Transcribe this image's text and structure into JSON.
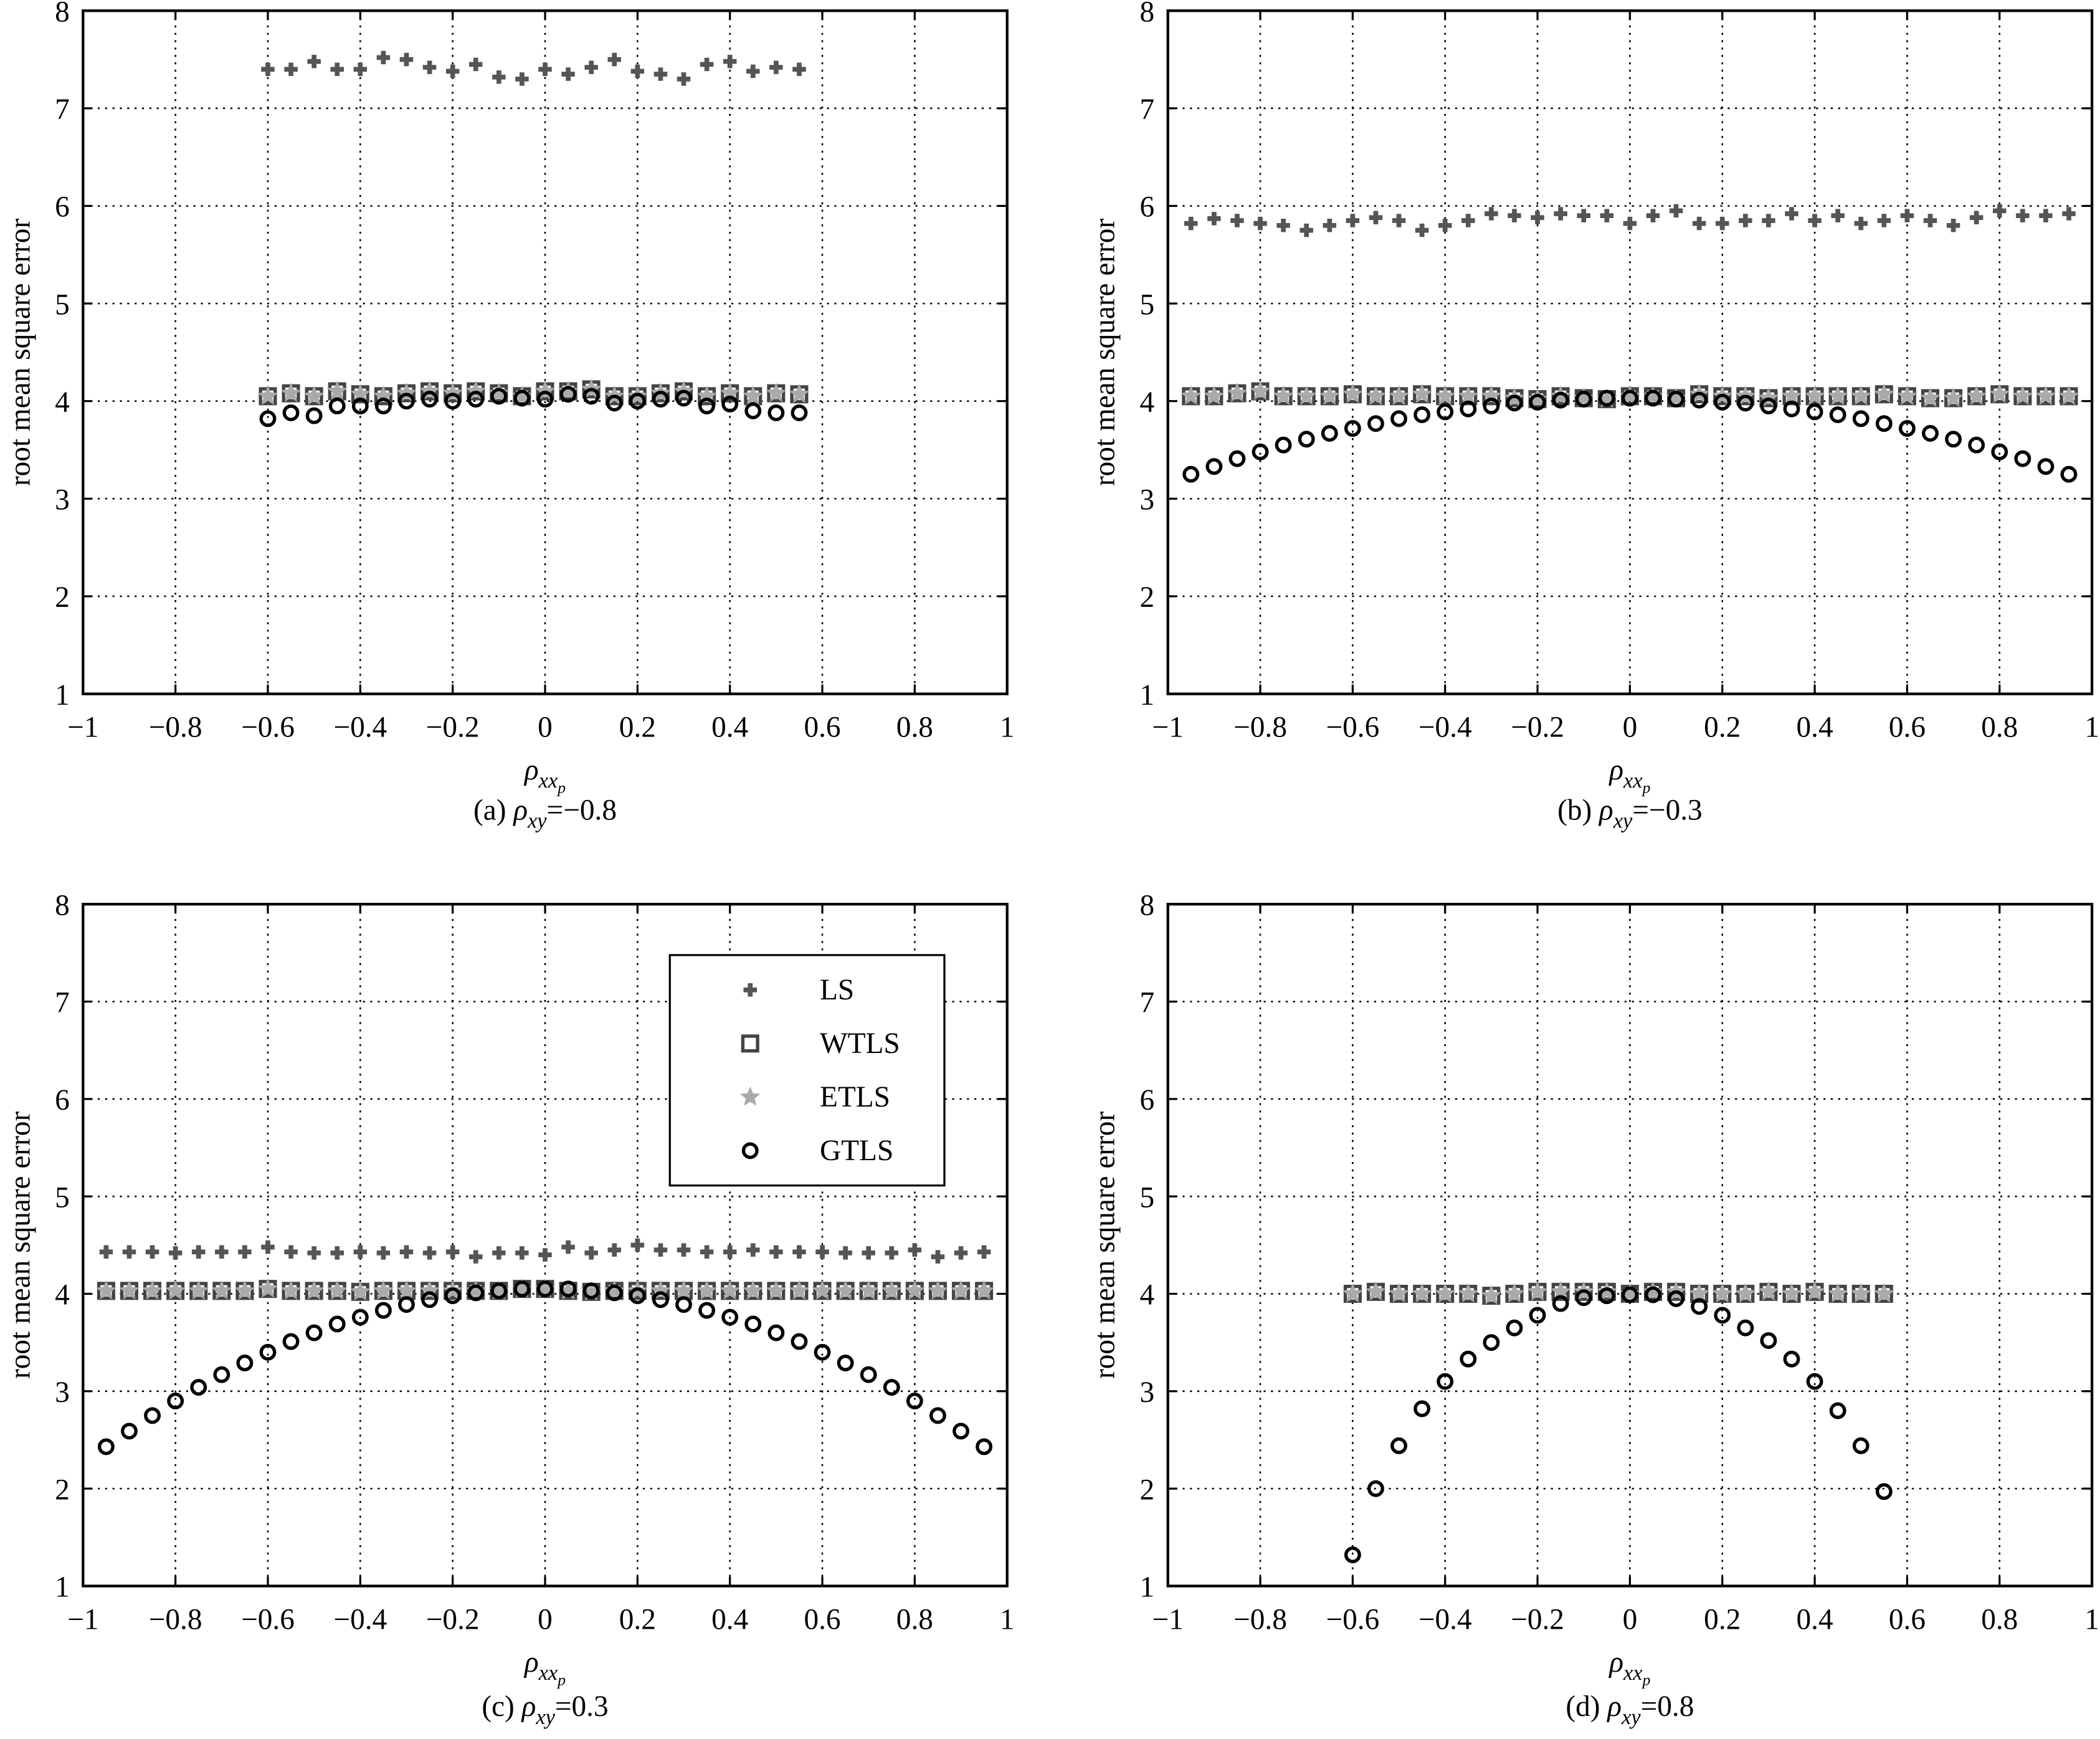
{
  "chart_data": [
    {
      "type": "scatter",
      "ylabel": "root mean square error",
      "xlabel": {
        "symbol": "ρ",
        "sub": "xx",
        "subsub": "p"
      },
      "caption": {
        "prefix": "(a)",
        "symbol": "ρ",
        "sub": "xy",
        "suffix": "=−0.8"
      },
      "xlim": [
        -1,
        1
      ],
      "ylim": [
        1,
        8
      ],
      "grid": true,
      "xticks": [
        {
          "value": -1,
          "label": "−1"
        },
        {
          "value": -0.8,
          "label": "−0.8"
        },
        {
          "value": -0.6,
          "label": "−0.6"
        },
        {
          "value": -0.4,
          "label": "−0.4"
        },
        {
          "value": -0.2,
          "label": "−0.2"
        },
        0,
        0.2,
        0.4,
        0.6,
        0.8,
        1
      ],
      "yticks": [
        1,
        2,
        3,
        4,
        5,
        6,
        7,
        8
      ],
      "x": [
        -0.6,
        -0.55,
        -0.5,
        -0.45,
        -0.4,
        -0.35,
        -0.3,
        -0.25,
        -0.2,
        -0.15,
        -0.1,
        -0.05,
        0,
        0.05,
        0.1,
        0.15,
        0.2,
        0.25,
        0.3,
        0.35,
        0.4,
        0.45,
        0.5,
        0.55
      ],
      "series": [
        {
          "name": "LS",
          "color": "#555555",
          "marker": "plus",
          "values": [
            7.4,
            7.4,
            7.48,
            7.4,
            7.4,
            7.52,
            7.5,
            7.42,
            7.38,
            7.45,
            7.32,
            7.3,
            7.4,
            7.35,
            7.42,
            7.5,
            7.38,
            7.35,
            7.3,
            7.45,
            7.48,
            7.38,
            7.42,
            7.4
          ]
        },
        {
          "name": "WTLS",
          "color": "#444444",
          "marker": "square",
          "values": [
            4.05,
            4.08,
            4.05,
            4.1,
            4.07,
            4.05,
            4.08,
            4.1,
            4.08,
            4.1,
            4.08,
            4.05,
            4.1,
            4.1,
            4.12,
            4.05,
            4.05,
            4.08,
            4.1,
            4.05,
            4.08,
            4.05,
            4.08,
            4.07
          ]
        },
        {
          "name": "ETLS",
          "color": "#aaaaaa",
          "marker": "star",
          "values": [
            4.05,
            4.08,
            4.05,
            4.1,
            4.07,
            4.05,
            4.08,
            4.1,
            4.08,
            4.1,
            4.08,
            4.05,
            4.1,
            4.1,
            4.12,
            4.05,
            4.05,
            4.08,
            4.1,
            4.05,
            4.08,
            4.05,
            4.08,
            4.07
          ]
        },
        {
          "name": "GTLS",
          "color": "#000000",
          "marker": "circle",
          "values": [
            3.82,
            3.88,
            3.85,
            3.95,
            3.95,
            3.95,
            4.0,
            4.02,
            4.0,
            4.02,
            4.05,
            4.03,
            4.02,
            4.07,
            4.05,
            3.98,
            4.0,
            4.02,
            4.03,
            3.95,
            3.97,
            3.9,
            3.88,
            3.88
          ]
        }
      ]
    },
    {
      "type": "scatter",
      "ylabel": "root mean square error",
      "xlabel": {
        "symbol": "ρ",
        "sub": "xx",
        "subsub": "p"
      },
      "caption": {
        "prefix": "(b)",
        "symbol": "ρ",
        "sub": "xy",
        "suffix": "=−0.3"
      },
      "xlim": [
        -1,
        1
      ],
      "ylim": [
        1,
        8
      ],
      "grid": true,
      "xticks": [
        {
          "value": -1,
          "label": "−1"
        },
        {
          "value": -0.8,
          "label": "−0.8"
        },
        {
          "value": -0.6,
          "label": "−0.6"
        },
        {
          "value": -0.4,
          "label": "−0.4"
        },
        {
          "value": -0.2,
          "label": "−0.2"
        },
        0,
        0.2,
        0.4,
        0.6,
        0.8,
        1
      ],
      "yticks": [
        1,
        2,
        3,
        4,
        5,
        6,
        7,
        8
      ],
      "x": [
        -0.95,
        -0.9,
        -0.85,
        -0.8,
        -0.75,
        -0.7,
        -0.65,
        -0.6,
        -0.55,
        -0.5,
        -0.45,
        -0.4,
        -0.35,
        -0.3,
        -0.25,
        -0.2,
        -0.15,
        -0.1,
        -0.05,
        0,
        0.05,
        0.1,
        0.15,
        0.2,
        0.25,
        0.3,
        0.35,
        0.4,
        0.45,
        0.5,
        0.55,
        0.6,
        0.65,
        0.7,
        0.75,
        0.8,
        0.85,
        0.9,
        0.95
      ],
      "series": [
        {
          "name": "LS",
          "color": "#555555",
          "marker": "plus",
          "values": [
            5.82,
            5.87,
            5.85,
            5.82,
            5.8,
            5.75,
            5.8,
            5.85,
            5.88,
            5.85,
            5.75,
            5.8,
            5.85,
            5.92,
            5.9,
            5.88,
            5.92,
            5.9,
            5.9,
            5.82,
            5.9,
            5.95,
            5.82,
            5.82,
            5.85,
            5.85,
            5.92,
            5.85,
            5.9,
            5.82,
            5.85,
            5.9,
            5.85,
            5.8,
            5.88,
            5.95,
            5.9,
            5.9,
            5.92
          ]
        },
        {
          "name": "WTLS",
          "color": "#444444",
          "marker": "square",
          "values": [
            4.05,
            4.05,
            4.08,
            4.1,
            4.05,
            4.05,
            4.05,
            4.07,
            4.05,
            4.05,
            4.07,
            4.05,
            4.05,
            4.05,
            4.03,
            4.02,
            4.05,
            4.03,
            4.02,
            4.05,
            4.05,
            4.03,
            4.07,
            4.05,
            4.05,
            4.03,
            4.05,
            4.05,
            4.05,
            4.05,
            4.07,
            4.05,
            4.03,
            4.03,
            4.05,
            4.07,
            4.05,
            4.05,
            4.05
          ]
        },
        {
          "name": "ETLS",
          "color": "#aaaaaa",
          "marker": "star",
          "values": [
            4.05,
            4.05,
            4.08,
            4.1,
            4.05,
            4.05,
            4.05,
            4.07,
            4.05,
            4.05,
            4.07,
            4.05,
            4.05,
            4.05,
            4.03,
            4.02,
            4.05,
            4.03,
            4.02,
            4.05,
            4.05,
            4.03,
            4.07,
            4.05,
            4.05,
            4.03,
            4.05,
            4.05,
            4.05,
            4.05,
            4.07,
            4.05,
            4.03,
            4.03,
            4.05,
            4.07,
            4.05,
            4.05,
            4.05
          ]
        },
        {
          "name": "GTLS",
          "color": "#000000",
          "marker": "circle",
          "values": [
            3.25,
            3.33,
            3.41,
            3.48,
            3.55,
            3.61,
            3.67,
            3.72,
            3.77,
            3.82,
            3.86,
            3.89,
            3.92,
            3.95,
            3.98,
            3.99,
            4.01,
            4.02,
            4.03,
            4.03,
            4.03,
            4.02,
            4.01,
            3.99,
            3.98,
            3.95,
            3.92,
            3.89,
            3.86,
            3.82,
            3.77,
            3.72,
            3.67,
            3.61,
            3.55,
            3.48,
            3.41,
            3.33,
            3.25
          ]
        }
      ]
    },
    {
      "type": "scatter",
      "ylabel": "root mean square error",
      "xlabel": {
        "symbol": "ρ",
        "sub": "xx",
        "subsub": "p"
      },
      "caption": {
        "prefix": "(c)",
        "symbol": "ρ",
        "sub": "xy",
        "suffix": "=0.3"
      },
      "xlim": [
        -1,
        1
      ],
      "ylim": [
        1,
        8
      ],
      "grid": true,
      "legend": "upper right",
      "xticks": [
        {
          "value": -1,
          "label": "−1"
        },
        {
          "value": -0.8,
          "label": "−0.8"
        },
        {
          "value": -0.6,
          "label": "−0.6"
        },
        {
          "value": -0.4,
          "label": "−0.4"
        },
        {
          "value": -0.2,
          "label": "−0.2"
        },
        0,
        0.2,
        0.4,
        0.6,
        0.8,
        1
      ],
      "yticks": [
        1,
        2,
        3,
        4,
        5,
        6,
        7,
        8
      ],
      "x": [
        -0.95,
        -0.9,
        -0.85,
        -0.8,
        -0.75,
        -0.7,
        -0.65,
        -0.6,
        -0.55,
        -0.5,
        -0.45,
        -0.4,
        -0.35,
        -0.3,
        -0.25,
        -0.2,
        -0.15,
        -0.1,
        -0.05,
        0,
        0.05,
        0.1,
        0.15,
        0.2,
        0.25,
        0.3,
        0.35,
        0.4,
        0.45,
        0.5,
        0.55,
        0.6,
        0.65,
        0.7,
        0.75,
        0.8,
        0.85,
        0.9,
        0.95
      ],
      "series": [
        {
          "name": "LS",
          "color": "#555555",
          "marker": "plus",
          "values": [
            4.43,
            4.43,
            4.43,
            4.42,
            4.43,
            4.43,
            4.43,
            4.48,
            4.43,
            4.42,
            4.42,
            4.43,
            4.42,
            4.43,
            4.42,
            4.43,
            4.38,
            4.42,
            4.42,
            4.4,
            4.48,
            4.42,
            4.45,
            4.5,
            4.45,
            4.45,
            4.43,
            4.43,
            4.45,
            4.43,
            4.43,
            4.43,
            4.42,
            4.42,
            4.42,
            4.45,
            4.38,
            4.42,
            4.43
          ]
        },
        {
          "name": "WTLS",
          "color": "#444444",
          "marker": "square",
          "values": [
            4.03,
            4.03,
            4.03,
            4.03,
            4.03,
            4.03,
            4.03,
            4.05,
            4.03,
            4.03,
            4.03,
            4.02,
            4.03,
            4.03,
            4.03,
            4.03,
            4.03,
            4.03,
            4.05,
            4.05,
            4.03,
            4.02,
            4.03,
            4.03,
            4.03,
            4.03,
            4.03,
            4.03,
            4.03,
            4.03,
            4.03,
            4.03,
            4.03,
            4.03,
            4.03,
            4.03,
            4.03,
            4.03,
            4.03
          ]
        },
        {
          "name": "ETLS",
          "color": "#aaaaaa",
          "marker": "star",
          "values": [
            4.03,
            4.03,
            4.03,
            4.03,
            4.03,
            4.03,
            4.03,
            4.05,
            4.03,
            4.03,
            4.03,
            4.02,
            4.03,
            4.03,
            4.03,
            4.03,
            4.03,
            4.03,
            4.05,
            4.05,
            4.03,
            4.02,
            4.03,
            4.03,
            4.03,
            4.03,
            4.03,
            4.03,
            4.03,
            4.03,
            4.03,
            4.03,
            4.03,
            4.03,
            4.03,
            4.03,
            4.03,
            4.03,
            4.03
          ]
        },
        {
          "name": "GTLS",
          "color": "#000000",
          "marker": "circle",
          "values": [
            2.43,
            2.59,
            2.75,
            2.9,
            3.04,
            3.17,
            3.29,
            3.4,
            3.51,
            3.6,
            3.69,
            3.76,
            3.83,
            3.89,
            3.94,
            3.98,
            4.01,
            4.03,
            4.05,
            4.05,
            4.05,
            4.03,
            4.01,
            3.98,
            3.94,
            3.89,
            3.83,
            3.76,
            3.69,
            3.6,
            3.51,
            3.4,
            3.29,
            3.17,
            3.04,
            2.9,
            2.75,
            2.59,
            2.43
          ]
        }
      ]
    },
    {
      "type": "scatter",
      "ylabel": "root mean square error",
      "xlabel": {
        "symbol": "ρ",
        "sub": "xx",
        "subsub": "p"
      },
      "caption": {
        "prefix": "(d)",
        "symbol": "ρ",
        "sub": "xy",
        "suffix": "=0.8"
      },
      "xlim": [
        -1,
        1
      ],
      "ylim": [
        1,
        8
      ],
      "grid": true,
      "xticks": [
        {
          "value": -1,
          "label": "−1"
        },
        {
          "value": -0.8,
          "label": "−0.8"
        },
        {
          "value": -0.6,
          "label": "−0.6"
        },
        {
          "value": -0.4,
          "label": "−0.4"
        },
        {
          "value": -0.2,
          "label": "−0.2"
        },
        0,
        0.2,
        0.4,
        0.6,
        0.8,
        1
      ],
      "yticks": [
        1,
        2,
        3,
        4,
        5,
        6,
        7,
        8
      ],
      "x": [
        -0.6,
        -0.55,
        -0.5,
        -0.45,
        -0.4,
        -0.35,
        -0.3,
        -0.25,
        -0.2,
        -0.15,
        -0.1,
        -0.05,
        0,
        0.05,
        0.1,
        0.15,
        0.2,
        0.25,
        0.3,
        0.35,
        0.4,
        0.45,
        0.5,
        0.55
      ],
      "series": [
        {
          "name": "WTLS",
          "color": "#444444",
          "marker": "square",
          "values": [
            4.0,
            4.02,
            4.0,
            4.0,
            4.0,
            4.0,
            3.98,
            4.0,
            4.02,
            4.02,
            4.02,
            4.02,
            4.0,
            4.02,
            4.02,
            4.0,
            4.0,
            4.0,
            4.02,
            4.0,
            4.02,
            4.0,
            4.0,
            4.0
          ]
        },
        {
          "name": "ETLS",
          "color": "#aaaaaa",
          "marker": "star",
          "values": [
            4.0,
            4.02,
            4.0,
            4.0,
            4.0,
            4.0,
            3.98,
            4.0,
            4.02,
            4.02,
            4.02,
            4.02,
            4.0,
            4.02,
            4.02,
            4.0,
            4.0,
            4.0,
            4.02,
            4.0,
            4.02,
            4.0,
            4.0,
            4.0
          ]
        },
        {
          "name": "GTLS",
          "color": "#000000",
          "marker": "circle",
          "values": [
            1.32,
            2.0,
            2.44,
            2.82,
            3.1,
            3.33,
            3.5,
            3.65,
            3.78,
            3.9,
            3.96,
            3.98,
            3.99,
            3.99,
            3.95,
            3.87,
            3.78,
            3.65,
            3.52,
            3.33,
            3.1,
            2.8,
            2.44,
            1.97
          ]
        }
      ]
    }
  ]
}
